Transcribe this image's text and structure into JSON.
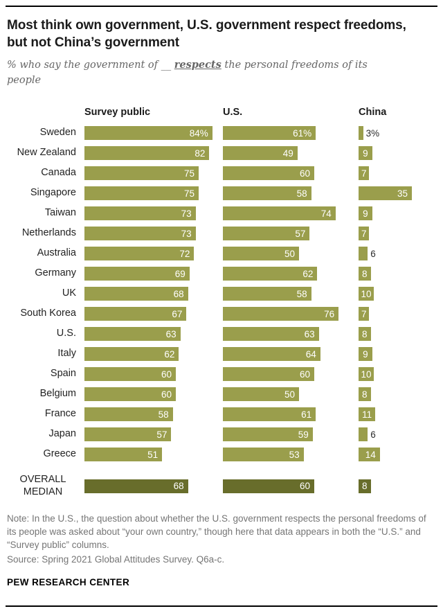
{
  "header": {
    "title": "Most think own government, U.S. government respect freedoms, but not China’s government",
    "subtitle_prefix": "% who say the government of __ ",
    "subtitle_emphasis": "respects",
    "subtitle_suffix": " the personal freedoms of its people"
  },
  "chart_data": {
    "type": "bar",
    "orientation": "horizontal",
    "columns": [
      "Survey public",
      "U.S.",
      "China"
    ],
    "categories": [
      "Sweden",
      "New Zealand",
      "Canada",
      "Singapore",
      "Taiwan",
      "Netherlands",
      "Australia",
      "Germany",
      "UK",
      "South Korea",
      "U.S.",
      "Italy",
      "Spain",
      "Belgium",
      "France",
      "Japan",
      "Greece"
    ],
    "series": [
      {
        "name": "Survey public",
        "values": [
          84,
          82,
          75,
          75,
          73,
          73,
          72,
          69,
          68,
          67,
          63,
          62,
          60,
          60,
          58,
          57,
          51
        ]
      },
      {
        "name": "U.S.",
        "values": [
          61,
          49,
          60,
          58,
          74,
          57,
          50,
          62,
          58,
          76,
          63,
          64,
          60,
          50,
          61,
          59,
          53
        ]
      },
      {
        "name": "China",
        "values": [
          3,
          9,
          7,
          35,
          9,
          7,
          6,
          8,
          10,
          7,
          8,
          9,
          10,
          8,
          11,
          6,
          14
        ]
      }
    ],
    "median": {
      "label": "OVERALL MEDIAN",
      "values": [
        68,
        60,
        8
      ]
    },
    "value_suffix_first_row": "%",
    "xlim": [
      0,
      88
    ],
    "grid": false,
    "legend_position": "column-headers",
    "bar_color": "#9a9e4c",
    "median_color": "#686d2b"
  },
  "footer": {
    "note": "Note: In the U.S., the question about whether the U.S. government respects the personal freedoms of its people was asked about “your own country,” though here that data appears in both the “U.S.” and “Survey public” columns.",
    "source": "Source: Spring 2021 Global Attitudes Survey. Q6a-c.",
    "brand": "PEW RESEARCH CENTER"
  }
}
